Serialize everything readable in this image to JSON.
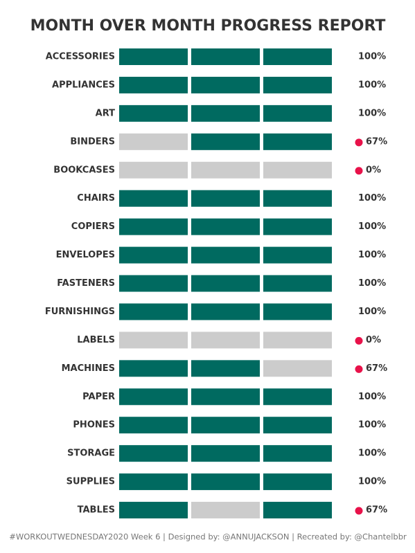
{
  "chart_data": {
    "type": "progress",
    "title": "MONTH OVER MONTH PROGRESS REPORT",
    "footer": "#WORKOUTWEDNESDAY2020 Week 6 | Designed by: @ANNUJACKSON | Recreated by: @Chantelbbr",
    "categories": [
      "ACCESSORIES",
      "APPLIANCES",
      "ART",
      "BINDERS",
      "BOOKCASES",
      "CHAIRS",
      "COPIERS",
      "ENVELOPES",
      "FASTENERS",
      "FURNISHINGS",
      "LABELS",
      "MACHINES",
      "PAPER",
      "PHONES",
      "STORAGE",
      "SUPPLIES",
      "TABLES"
    ],
    "cells": [
      [
        1,
        1,
        1
      ],
      [
        1,
        1,
        1
      ],
      [
        1,
        1,
        1
      ],
      [
        0,
        1,
        1
      ],
      [
        0,
        0,
        0
      ],
      [
        1,
        1,
        1
      ],
      [
        1,
        1,
        1
      ],
      [
        1,
        1,
        1
      ],
      [
        1,
        1,
        1
      ],
      [
        1,
        1,
        1
      ],
      [
        0,
        0,
        0
      ],
      [
        1,
        1,
        0
      ],
      [
        1,
        1,
        1
      ],
      [
        1,
        1,
        1
      ],
      [
        1,
        1,
        1
      ],
      [
        1,
        1,
        1
      ],
      [
        1,
        0,
        1
      ]
    ],
    "values": [
      100,
      100,
      100,
      67,
      0,
      100,
      100,
      100,
      100,
      100,
      0,
      67,
      100,
      100,
      100,
      100,
      67
    ],
    "value_labels": [
      "100%",
      "100%",
      "100%",
      "67%",
      "0%",
      "100%",
      "100%",
      "100%",
      "100%",
      "100%",
      "0%",
      "67%",
      "100%",
      "100%",
      "100%",
      "100%",
      "67%"
    ],
    "color_met": "#006a60",
    "color_unmet": "#cccccc",
    "alert_color": "#e8124a"
  }
}
